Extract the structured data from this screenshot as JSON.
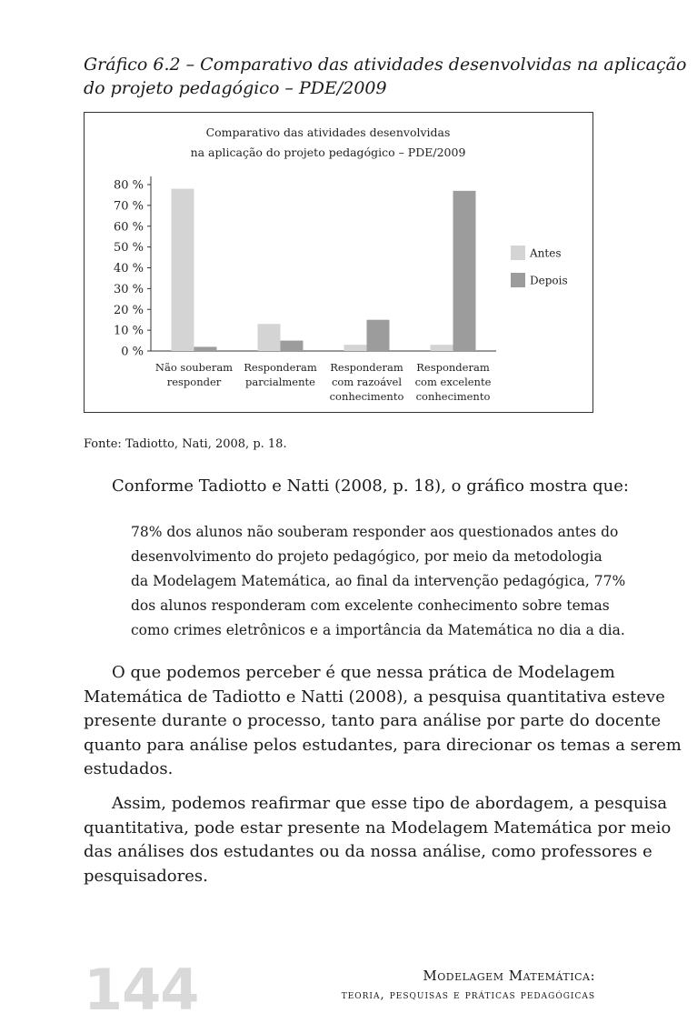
{
  "caption": {
    "line1": "Gráfico 6.2 – Comparativo das atividades desenvolvidas na aplicação",
    "line2": "do projeto pedagógico – PDE/2009"
  },
  "chart_data": {
    "type": "bar",
    "title_lines": [
      "Comparativo das atividades desenvolvidas",
      "na aplicação do projeto pedagógico – PDE/2009"
    ],
    "categories": [
      [
        "Não souberam",
        "responder"
      ],
      [
        "Responderam",
        "parcialmente"
      ],
      [
        "Responderam",
        "com razoável",
        "conhecimento"
      ],
      [
        "Responderam",
        "com excelente",
        "conhecimento"
      ]
    ],
    "series": [
      {
        "name": "Antes",
        "color": "#d4d4d4",
        "values": [
          78,
          13,
          3,
          3
        ]
      },
      {
        "name": "Depois",
        "color": "#9c9c9c",
        "values": [
          2,
          5,
          15,
          77
        ]
      }
    ],
    "y_ticks": [
      "80 %",
      "70 %",
      "60 %",
      "50 %",
      "40 %",
      "30 %",
      "20 %",
      "10 %",
      "0 %"
    ],
    "ylim": [
      0,
      80
    ],
    "legend_position": "right",
    "grid": false
  },
  "source": "Fonte: Tadiotto, Nati, 2008, p. 18.",
  "intro": "Conforme Tadiotto e Natti (2008, p. 18), o gráfico mostra que:",
  "quote_lines": [
    "78% dos alunos não souberam responder aos questionados antes do",
    "desenvolvimento do projeto pedagógico, por meio da metodologia",
    "da Modelagem Matemática, ao final da intervenção pedagógica, 77%",
    "dos alunos responderam com excelente conhecimento sobre temas",
    "como crimes eletrônicos e a importância da Matemática no dia a dia."
  ],
  "paragraph1_lines": [
    "O que podemos perceber é que nessa prática de Modelagem",
    "Matemática de Tadiotto e Natti (2008), a pesquisa quantitativa esteve",
    "presente durante o processo, tanto para análise por parte do docente",
    "quanto para análise pelos estudantes, para direcionar os temas a serem",
    "estudados."
  ],
  "paragraph2_lines": [
    "Assim, podemos reafirmar que esse tipo de abordagem, a pesquisa",
    "quantitativa, pode estar presente na Modelagem Matemática por meio",
    "das análises dos estudantes ou da nossa análise, como professores e",
    "pesquisadores."
  ],
  "footer": {
    "page_number": "144",
    "running_head_line1": "Modelagem Matemática:",
    "running_head_line2": "teoria, pesquisas e práticas pedagógicas"
  }
}
